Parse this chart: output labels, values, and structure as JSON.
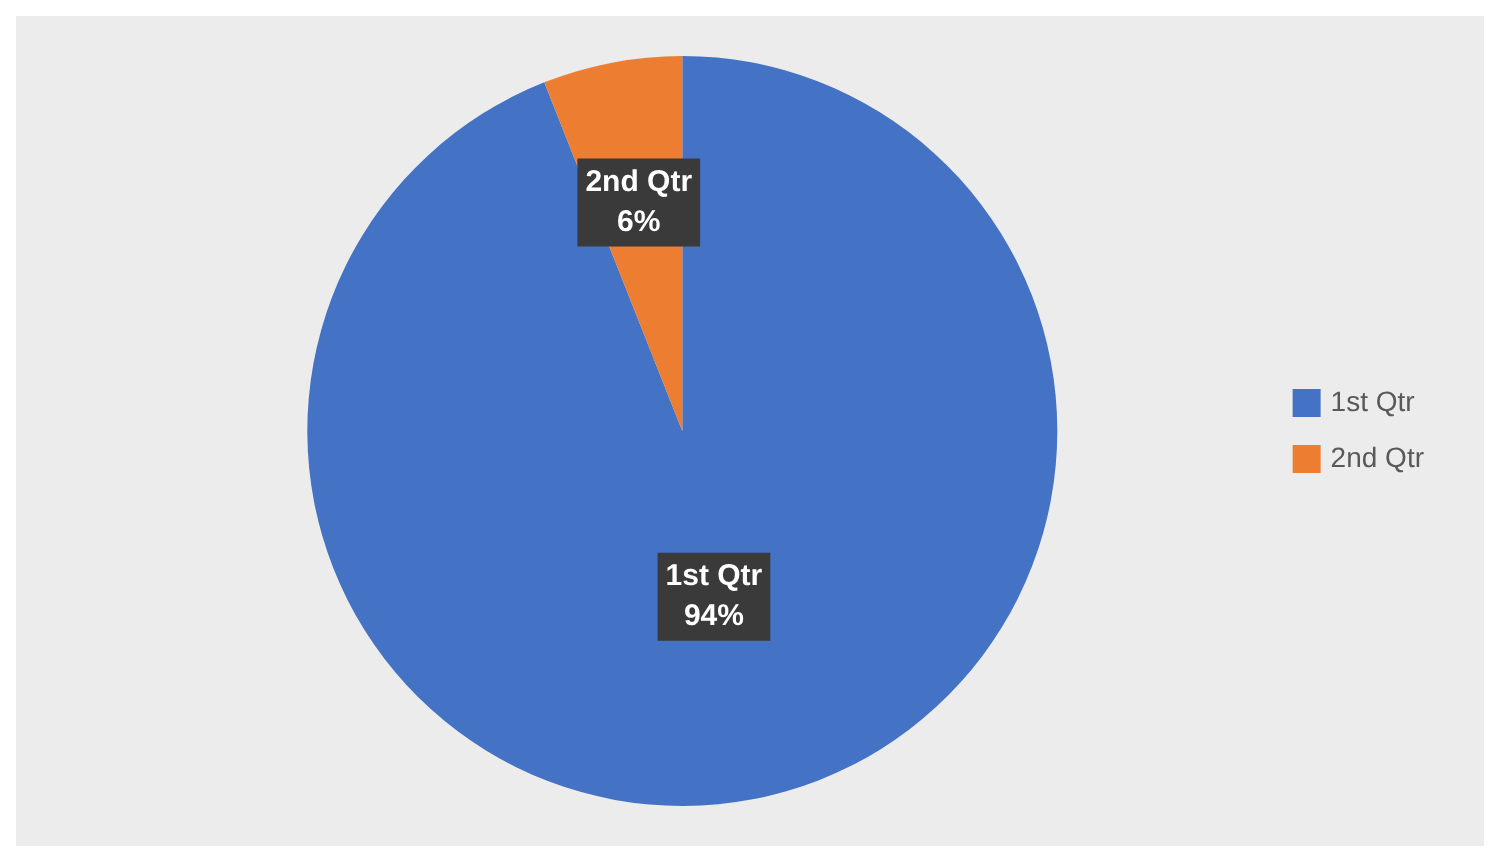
{
  "chart_data": {
    "type": "pie",
    "categories": [
      "1st Qtr",
      "2nd Qtr"
    ],
    "values": [
      94,
      6
    ],
    "colors": [
      "#4472c4",
      "#ed7d31"
    ],
    "value_labels": [
      "94%",
      "6%"
    ],
    "legend": "right"
  }
}
